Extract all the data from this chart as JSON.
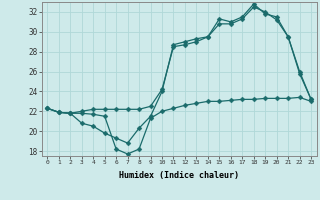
{
  "xlabel": "Humidex (Indice chaleur)",
  "ylabel": "",
  "background_color": "#ceeaea",
  "grid_color": "#b0d8d8",
  "line_color": "#1a6b6b",
  "xlim": [
    -0.5,
    23.5
  ],
  "ylim": [
    17.5,
    33.0
  ],
  "xticks": [
    0,
    1,
    2,
    3,
    4,
    5,
    6,
    7,
    8,
    9,
    10,
    11,
    12,
    13,
    14,
    15,
    16,
    17,
    18,
    19,
    20,
    21,
    22,
    23
  ],
  "yticks": [
    18,
    20,
    22,
    24,
    26,
    28,
    30,
    32
  ],
  "line1_x": [
    0,
    1,
    2,
    3,
    4,
    5,
    6,
    7,
    8,
    9,
    10,
    11,
    12,
    13,
    14,
    15,
    16,
    17,
    18,
    19,
    20,
    21,
    22,
    23
  ],
  "line1_y": [
    22.3,
    21.9,
    21.8,
    21.8,
    21.7,
    21.5,
    18.2,
    17.7,
    18.2,
    21.3,
    22.0,
    22.3,
    22.6,
    22.8,
    23.0,
    23.0,
    23.1,
    23.2,
    23.2,
    23.3,
    23.3,
    23.3,
    23.4,
    23.0
  ],
  "line2_x": [
    0,
    1,
    2,
    3,
    4,
    5,
    6,
    7,
    8,
    9,
    10,
    11,
    12,
    13,
    14,
    15,
    16,
    17,
    18,
    19,
    20,
    21,
    22,
    23
  ],
  "line2_y": [
    22.3,
    21.9,
    21.8,
    20.8,
    20.5,
    19.8,
    19.3,
    18.8,
    20.3,
    21.5,
    24.0,
    28.7,
    29.0,
    29.3,
    29.5,
    30.8,
    30.8,
    31.3,
    32.5,
    32.0,
    31.2,
    29.5,
    26.0,
    23.2
  ],
  "line3_x": [
    0,
    1,
    2,
    3,
    4,
    5,
    6,
    7,
    8,
    9,
    10,
    11,
    12,
    13,
    14,
    15,
    16,
    17,
    18,
    19,
    20,
    21,
    22,
    23
  ],
  "line3_y": [
    22.3,
    21.9,
    21.8,
    22.0,
    22.2,
    22.2,
    22.2,
    22.2,
    22.2,
    22.5,
    24.2,
    28.5,
    28.7,
    29.0,
    29.5,
    31.3,
    31.0,
    31.5,
    32.8,
    31.8,
    31.5,
    29.5,
    25.8,
    23.2
  ]
}
